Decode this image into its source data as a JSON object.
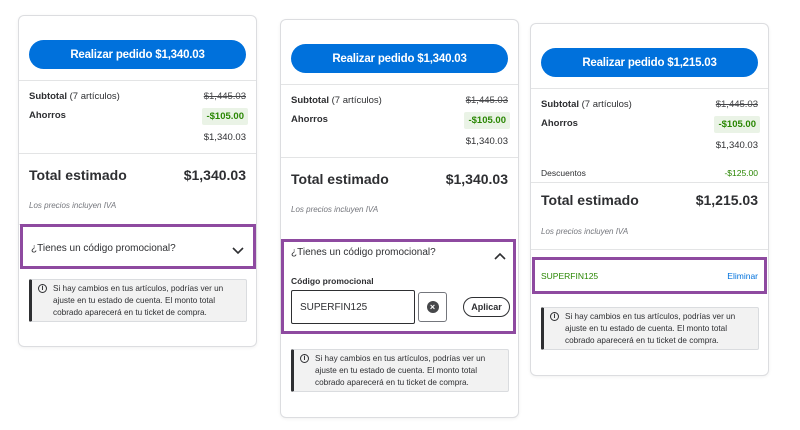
{
  "colors": {
    "primary": "#0071dc",
    "savings_green": "#2a8703",
    "highlight": "#8e4aa0"
  },
  "card1": {
    "place_order": "Realizar pedido $1,340.03",
    "subtotal_label": "Subtotal",
    "subtotal_count": "(7 artículos)",
    "subtotal_original": "$1,445.03",
    "savings_label": "Ahorros",
    "savings_amount": "-$105.00",
    "subtotal_after": "$1,340.03",
    "total_label": "Total estimado",
    "total_amount": "$1,340.03",
    "iva_note": "Los precios incluyen IVA",
    "promo_question": "¿Tienes un código promocional?",
    "promo_icon": "chevron-down-icon",
    "notice": "Si hay cambios en tus artículos, podrías ver un ajuste en tu estado de cuenta. El monto total cobrado aparecerá en tu ticket de compra."
  },
  "card2": {
    "place_order": "Realizar pedido $1,340.03",
    "subtotal_label": "Subtotal",
    "subtotal_count": "(7 artículos)",
    "subtotal_original": "$1,445.03",
    "savings_label": "Ahorros",
    "savings_amount": "-$105.00",
    "subtotal_after": "$1,340.03",
    "total_label": "Total estimado",
    "total_amount": "$1,340.03",
    "iva_note": "Los precios incluyen IVA",
    "promo_question": "¿Tienes un código promocional?",
    "promo_icon": "chevron-up-icon",
    "promo_field_label": "Código promocional",
    "promo_field_value": "SUPERFIN125",
    "apply_label": "Aplicar",
    "notice": "Si hay cambios en tus artículos, podrías ver un ajuste en tu estado de cuenta. El monto total cobrado aparecerá en tu ticket de compra."
  },
  "card3": {
    "place_order": "Realizar pedido $1,215.03",
    "subtotal_label": "Subtotal",
    "subtotal_count": "(7 artículos)",
    "subtotal_original": "$1,445.03",
    "savings_label": "Ahorros",
    "savings_amount": "-$105.00",
    "subtotal_after": "$1,340.03",
    "discounts_label": "Descuentos",
    "discounts_amount": "-$125.00",
    "total_label": "Total estimado",
    "total_amount": "$1,215.03",
    "iva_note": "Los precios incluyen IVA",
    "applied_code": "SUPERFIN125",
    "remove_label": "Eliminar",
    "notice": "Si hay cambios en tus artículos, podrías ver un ajuste en tu estado de cuenta. El monto total cobrado aparecerá en tu ticket de compra."
  }
}
